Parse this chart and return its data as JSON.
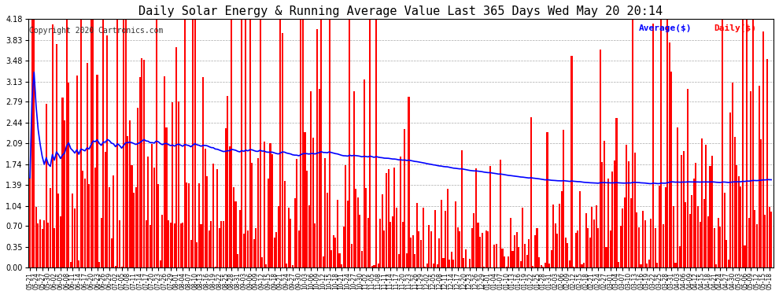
{
  "title": "Daily Solar Energy & Running Average Value Last 365 Days Wed May 20 20:14",
  "copyright": "Copyright 2020 Cartronics.com",
  "legend_avg": "Average($)",
  "legend_daily": "Daily($)",
  "avg_color": "#0000ff",
  "daily_color": "#ff0000",
  "background_color": "#ffffff",
  "grid_color": "#aaaaaa",
  "ylim": [
    0.0,
    4.18
  ],
  "yticks": [
    0.0,
    0.35,
    0.7,
    1.04,
    1.39,
    1.74,
    2.09,
    2.44,
    2.79,
    3.13,
    3.48,
    3.83,
    4.18
  ],
  "title_fontsize": 11,
  "copyright_fontsize": 7
}
